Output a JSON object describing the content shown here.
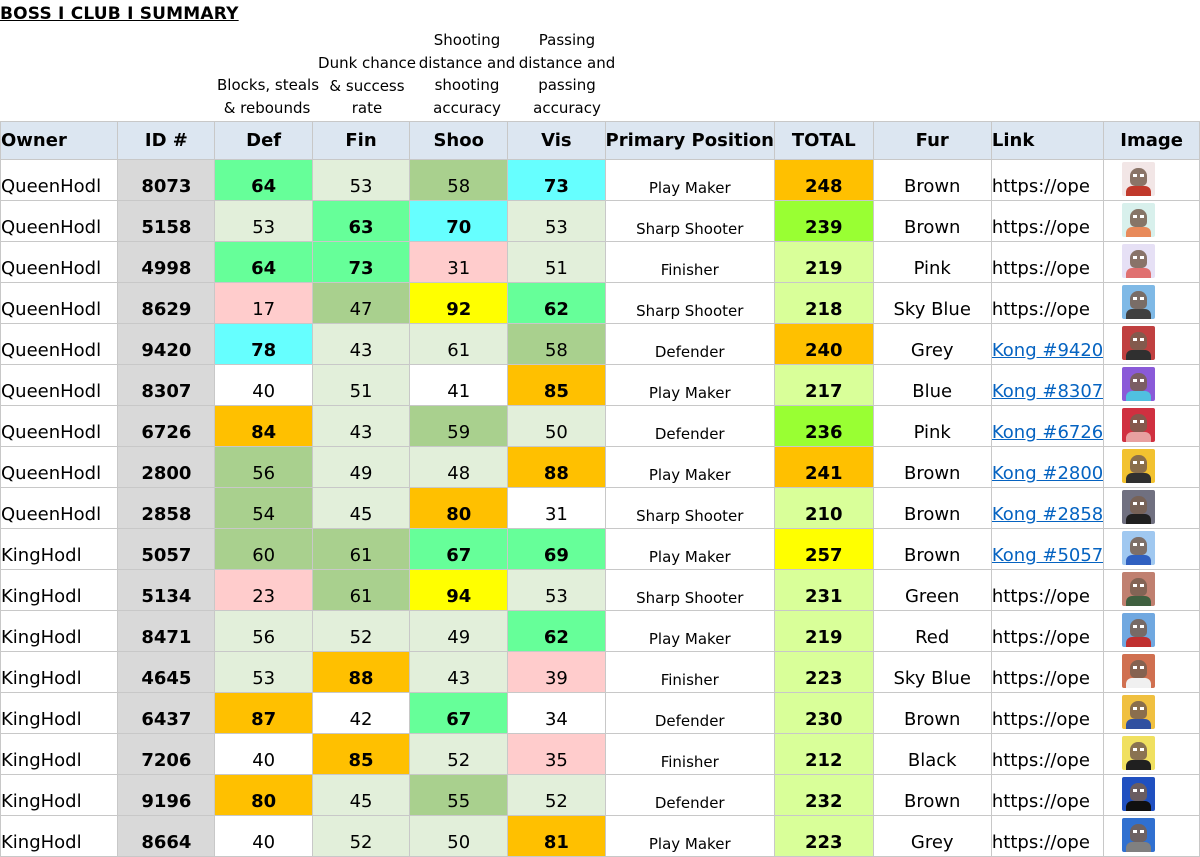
{
  "title": "BOSS I CLUB I SUMMARY",
  "descriptions": {
    "def": [
      "Blocks, steals",
      "& rebounds"
    ],
    "fin": [
      "Dunk chance",
      "& success",
      "rate"
    ],
    "shoo": [
      "Shooting",
      "distance and",
      "shooting",
      "accuracy"
    ],
    "vis": [
      "Passing",
      "distance and",
      "passing",
      "accuracy"
    ]
  },
  "headers": {
    "owner": "Owner",
    "id": "ID #",
    "def": "Def",
    "fin": "Fin",
    "shoo": "Shoo",
    "vis": "Vis",
    "position": "Primary Position",
    "total": "TOTAL",
    "fur": "Fur",
    "link": "Link",
    "image": "Image"
  },
  "colors": {
    "header_bg": "#dce6f1",
    "id_bg": "#d9d9d9",
    "pale_green": "#e2efda",
    "mid_green": "#a9d08e",
    "bright_green": "#66ff99",
    "cyan": "#66ffff",
    "yellow": "#ffff00",
    "orange": "#ffc000",
    "pink": "#ffcccc",
    "total_lime": "#99ff33",
    "total_pale_lime": "#d9ff99",
    "link_blue": "#0563c1"
  },
  "rows": [
    {
      "owner": "QueenHodl",
      "id": "8073",
      "def": "64",
      "fin": "53",
      "shoo": "58",
      "vis": "73",
      "position": "Play Maker",
      "total": "248",
      "fur": "Brown",
      "link": "https://ope",
      "link_style": "text",
      "image": "ape-avatar-icon",
      "def_c": "bright_green",
      "fin_c": "pale_green",
      "shoo_c": "mid_green",
      "vis_c": "cyan",
      "total_c": "orange",
      "hi": [
        "def",
        "vis"
      ],
      "img_bg": "#f2e6e6",
      "img_body": "#c0392b"
    },
    {
      "owner": "QueenHodl",
      "id": "5158",
      "def": "53",
      "fin": "63",
      "shoo": "70",
      "vis": "53",
      "position": "Sharp Shooter",
      "total": "239",
      "fur": "Brown",
      "link": "https://ope",
      "link_style": "text",
      "image": "ape-avatar-icon",
      "def_c": "pale_green",
      "fin_c": "bright_green",
      "shoo_c": "cyan",
      "vis_c": "pale_green",
      "total_c": "total_lime",
      "hi": [
        "fin",
        "shoo"
      ],
      "img_bg": "#d8f0ec",
      "img_body": "#e88a5a"
    },
    {
      "owner": "QueenHodl",
      "id": "4998",
      "def": "64",
      "fin": "73",
      "shoo": "31",
      "vis": "51",
      "position": "Finisher",
      "total": "219",
      "fur": "Pink",
      "link": "https://ope",
      "link_style": "text",
      "image": "ape-avatar-icon",
      "def_c": "bright_green",
      "fin_c": "bright_green",
      "shoo_c": "pink",
      "vis_c": "pale_green",
      "total_c": "total_pale_lime",
      "hi": [
        "def",
        "fin"
      ],
      "img_bg": "#e6e0f5",
      "img_body": "#e07070"
    },
    {
      "owner": "QueenHodl",
      "id": "8629",
      "def": "17",
      "fin": "47",
      "shoo": "92",
      "vis": "62",
      "position": "Sharp Shooter",
      "total": "218",
      "fur": "Sky Blue",
      "link": "https://ope",
      "link_style": "text",
      "image": "ape-avatar-icon",
      "def_c": "pink",
      "fin_c": "mid_green",
      "shoo_c": "yellow",
      "vis_c": "bright_green",
      "total_c": "total_pale_lime",
      "hi": [
        "shoo",
        "vis"
      ],
      "img_bg": "#7fb9e6",
      "img_body": "#404040"
    },
    {
      "owner": "QueenHodl",
      "id": "9420",
      "def": "78",
      "fin": "43",
      "shoo": "61",
      "vis": "58",
      "position": "Defender",
      "total": "240",
      "fur": "Grey",
      "link": "Kong #9420",
      "link_style": "link",
      "image": "ape-avatar-icon",
      "def_c": "cyan",
      "fin_c": "pale_green",
      "shoo_c": "pale_green",
      "vis_c": "mid_green",
      "total_c": "orange",
      "hi": [
        "def"
      ],
      "img_bg": "#c04040",
      "img_body": "#303030"
    },
    {
      "owner": "QueenHodl",
      "id": "8307",
      "def": "40",
      "fin": "51",
      "shoo": "41",
      "vis": "85",
      "position": "Play Maker",
      "total": "217",
      "fur": "Blue",
      "link": "Kong #8307",
      "link_style": "link",
      "image": "ape-avatar-icon",
      "def_c": "white",
      "fin_c": "pale_green",
      "shoo_c": "white",
      "vis_c": "orange",
      "total_c": "total_pale_lime",
      "hi": [
        "vis"
      ],
      "img_bg": "#8a5ad8",
      "img_body": "#50c0e0"
    },
    {
      "owner": "QueenHodl",
      "id": "6726",
      "def": "84",
      "fin": "43",
      "shoo": "59",
      "vis": "50",
      "position": "Defender",
      "total": "236",
      "fur": "Pink",
      "link": "Kong #6726",
      "link_style": "link",
      "image": "ape-avatar-icon",
      "def_c": "orange",
      "fin_c": "pale_green",
      "shoo_c": "mid_green",
      "vis_c": "pale_green",
      "total_c": "total_lime",
      "hi": [
        "def"
      ],
      "img_bg": "#d03040",
      "img_body": "#e8a0a0"
    },
    {
      "owner": "QueenHodl",
      "id": "2800",
      "def": "56",
      "fin": "49",
      "shoo": "48",
      "vis": "88",
      "position": "Play Maker",
      "total": "241",
      "fur": "Brown",
      "link": "Kong #2800",
      "link_style": "link",
      "image": "ape-avatar-icon",
      "def_c": "mid_green",
      "fin_c": "pale_green",
      "shoo_c": "pale_green",
      "vis_c": "orange",
      "total_c": "orange",
      "hi": [
        "vis"
      ],
      "img_bg": "#f2c230",
      "img_body": "#303030"
    },
    {
      "owner": "QueenHodl",
      "id": "2858",
      "def": "54",
      "fin": "45",
      "shoo": "80",
      "vis": "31",
      "position": "Sharp Shooter",
      "total": "210",
      "fur": "Brown",
      "link": "Kong #2858",
      "link_style": "link",
      "image": "ape-avatar-icon",
      "def_c": "mid_green",
      "fin_c": "pale_green",
      "shoo_c": "orange",
      "vis_c": "white",
      "total_c": "total_pale_lime",
      "hi": [
        "shoo"
      ],
      "img_bg": "#707080",
      "img_body": "#202020"
    },
    {
      "owner": "KingHodl",
      "id": "5057",
      "def": "60",
      "fin": "61",
      "shoo": "67",
      "vis": "69",
      "position": "Play Maker",
      "total": "257",
      "fur": "Brown",
      "link": "Kong #5057",
      "link_style": "link",
      "image": "ape-avatar-icon",
      "def_c": "mid_green",
      "fin_c": "mid_green",
      "shoo_c": "bright_green",
      "vis_c": "bright_green",
      "total_c": "yellow",
      "hi": [
        "shoo",
        "vis"
      ],
      "img_bg": "#a0c8f0",
      "img_body": "#3060c0"
    },
    {
      "owner": "KingHodl",
      "id": "5134",
      "def": "23",
      "fin": "61",
      "shoo": "94",
      "vis": "53",
      "position": "Sharp Shooter",
      "total": "231",
      "fur": "Green",
      "link": "https://ope",
      "link_style": "text",
      "image": "ape-avatar-icon",
      "def_c": "pink",
      "fin_c": "mid_green",
      "shoo_c": "yellow",
      "vis_c": "pale_green",
      "total_c": "total_pale_lime",
      "hi": [
        "shoo"
      ],
      "img_bg": "#c08070",
      "img_body": "#406040"
    },
    {
      "owner": "KingHodl",
      "id": "8471",
      "def": "56",
      "fin": "52",
      "shoo": "49",
      "vis": "62",
      "position": "Play Maker",
      "total": "219",
      "fur": "Red",
      "link": "https://ope",
      "link_style": "text",
      "image": "ape-avatar-icon",
      "def_c": "pale_green",
      "fin_c": "pale_green",
      "shoo_c": "pale_green",
      "vis_c": "bright_green",
      "total_c": "total_pale_lime",
      "hi": [
        "vis"
      ],
      "img_bg": "#70a8e0",
      "img_body": "#c03030"
    },
    {
      "owner": "KingHodl",
      "id": "4645",
      "def": "53",
      "fin": "88",
      "shoo": "43",
      "vis": "39",
      "position": "Finisher",
      "total": "223",
      "fur": "Sky Blue",
      "link": "https://ope",
      "link_style": "text",
      "image": "ape-avatar-icon",
      "def_c": "pale_green",
      "fin_c": "orange",
      "shoo_c": "pale_green",
      "vis_c": "pink",
      "total_c": "total_pale_lime",
      "hi": [
        "fin"
      ],
      "img_bg": "#d07050",
      "img_body": "#f0f0f0"
    },
    {
      "owner": "KingHodl",
      "id": "6437",
      "def": "87",
      "fin": "42",
      "shoo": "67",
      "vis": "34",
      "position": "Defender",
      "total": "230",
      "fur": "Brown",
      "link": "https://ope",
      "link_style": "text",
      "image": "ape-avatar-icon",
      "def_c": "orange",
      "fin_c": "white",
      "shoo_c": "bright_green",
      "vis_c": "white",
      "total_c": "total_pale_lime",
      "hi": [
        "def",
        "shoo"
      ],
      "img_bg": "#f0c040",
      "img_body": "#3050a0"
    },
    {
      "owner": "KingHodl",
      "id": "7206",
      "def": "40",
      "fin": "85",
      "shoo": "52",
      "vis": "35",
      "position": "Finisher",
      "total": "212",
      "fur": "Black",
      "link": "https://ope",
      "link_style": "text",
      "image": "ape-avatar-icon",
      "def_c": "white",
      "fin_c": "orange",
      "shoo_c": "pale_green",
      "vis_c": "pink",
      "total_c": "total_pale_lime",
      "hi": [
        "fin"
      ],
      "img_bg": "#f0e060",
      "img_body": "#202020"
    },
    {
      "owner": "KingHodl",
      "id": "9196",
      "def": "80",
      "fin": "45",
      "shoo": "55",
      "vis": "52",
      "position": "Defender",
      "total": "232",
      "fur": "Brown",
      "link": "https://ope",
      "link_style": "text",
      "image": "ape-avatar-icon",
      "def_c": "orange",
      "fin_c": "pale_green",
      "shoo_c": "mid_green",
      "vis_c": "pale_green",
      "total_c": "total_pale_lime",
      "hi": [
        "def"
      ],
      "img_bg": "#2050c0",
      "img_body": "#101010"
    },
    {
      "owner": "KingHodl",
      "id": "8664",
      "def": "40",
      "fin": "52",
      "shoo": "50",
      "vis": "81",
      "position": "Play Maker",
      "total": "223",
      "fur": "Grey",
      "link": "https://ope",
      "link_style": "text",
      "image": "ape-avatar-icon",
      "def_c": "white",
      "fin_c": "pale_green",
      "shoo_c": "pale_green",
      "vis_c": "orange",
      "total_c": "total_pale_lime",
      "hi": [
        "vis"
      ],
      "img_bg": "#3070d0",
      "img_body": "#808080"
    }
  ]
}
